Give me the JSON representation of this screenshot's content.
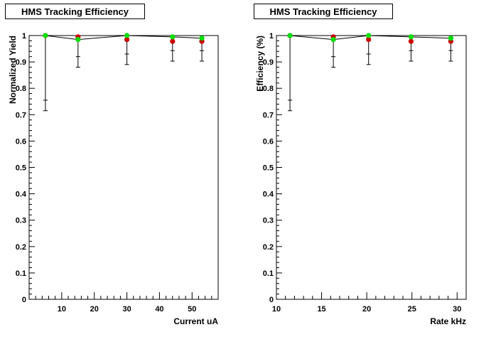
{
  "chart_data": [
    {
      "type": "scatter",
      "title": "HMS Tracking Efficiency",
      "xlabel": "Current uA",
      "ylabel": "Normalized Yield",
      "xlim": [
        0,
        58
      ],
      "ylim": [
        0,
        1.0
      ],
      "xticks": [
        "10",
        "20",
        "30",
        "40",
        "50"
      ],
      "yticks": [
        "0",
        "0.1",
        "0.2",
        "0.3",
        "0.4",
        "0.5",
        "0.6",
        "0.7",
        "0.8",
        "0.9",
        "1"
      ],
      "series": [
        {
          "name": "red",
          "color": "#cc0000",
          "x": [
            5,
            15,
            30,
            44,
            53
          ],
          "y": [
            1.0,
            0.995,
            0.985,
            0.978,
            0.978
          ],
          "err_low": [
            0.285,
            0.115,
            0.095,
            0.075,
            0.075
          ],
          "err_high": [
            0.0,
            0.005,
            0.015,
            0.02,
            0.02
          ]
        },
        {
          "name": "green",
          "color": "#00dd00",
          "x": [
            5,
            15,
            30,
            44,
            53
          ],
          "y": [
            1.0,
            0.985,
            1.0,
            0.995,
            0.99
          ],
          "err_low": [
            0.0,
            0.0,
            0.0,
            0.0,
            0.0
          ],
          "err_high": [
            0.0,
            0.0,
            0.0,
            0.0,
            0.0
          ]
        }
      ]
    },
    {
      "type": "scatter",
      "title": "HMS Tracking Efficiency",
      "xlabel": "Rate kHz",
      "ylabel": "Efficiency (%)",
      "xlim": [
        10,
        31
      ],
      "ylim": [
        0,
        1.0
      ],
      "xticks": [
        "10",
        "15",
        "20",
        "25",
        "30"
      ],
      "yticks": [
        "0",
        "0.1",
        "0.2",
        "0.3",
        "0.4",
        "0.5",
        "0.6",
        "0.7",
        "0.8",
        "0.9",
        "1"
      ],
      "series": [
        {
          "name": "red",
          "color": "#cc0000",
          "x": [
            11.5,
            16.3,
            20.2,
            24.9,
            29.3
          ],
          "y": [
            1.0,
            0.995,
            0.985,
            0.978,
            0.978
          ],
          "err_low": [
            0.285,
            0.115,
            0.095,
            0.075,
            0.075
          ],
          "err_high": [
            0.0,
            0.005,
            0.015,
            0.02,
            0.02
          ]
        },
        {
          "name": "green",
          "color": "#00dd00",
          "x": [
            11.5,
            16.3,
            20.2,
            24.9,
            29.3
          ],
          "y": [
            1.0,
            0.985,
            1.0,
            0.995,
            0.99
          ],
          "err_low": [
            0.0,
            0.0,
            0.0,
            0.0,
            0.0
          ],
          "err_high": [
            0.0,
            0.0,
            0.0,
            0.0,
            0.0
          ]
        }
      ]
    }
  ]
}
